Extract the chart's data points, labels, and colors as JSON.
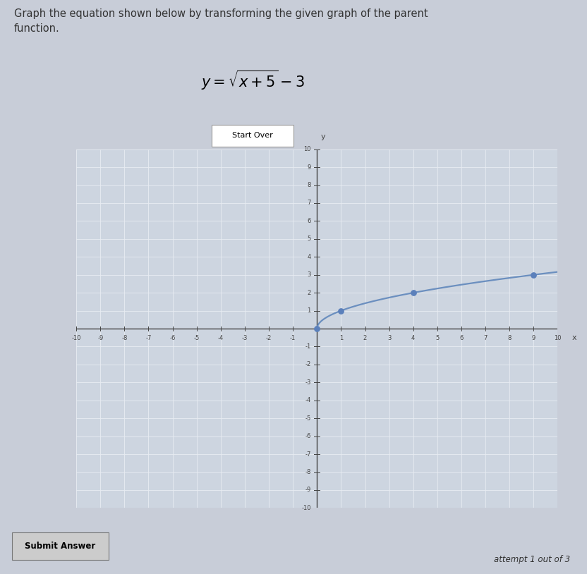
{
  "title_text": "Graph the equation shown below by transforming the given graph of the parent\nfunction.",
  "equation_display": "y=\\sqrt{x+5}-3",
  "button1": "Start Over",
  "button2": "Submit Answer",
  "footer": "attempt 1 out of 3",
  "xlim": [
    -10,
    10
  ],
  "ylim": [
    -10,
    10
  ],
  "curve_color": "#6b8fbf",
  "curve_linewidth": 1.6,
  "dot_color": "#5b80bb",
  "dot_size": 40,
  "dot_points": [
    [
      0,
      0
    ],
    [
      1,
      1
    ],
    [
      4,
      2
    ],
    [
      9,
      3
    ]
  ],
  "graph_bg": "#cdd5e0",
  "outer_bg": "#c8cdd8",
  "grid_color": "#e8ecf2",
  "axis_color": "#444444",
  "text_color": "#333333",
  "title_fontsize": 10.5,
  "equation_fontsize": 15,
  "tick_fontsize": 6,
  "xlabel": "x",
  "ylabel": "y"
}
